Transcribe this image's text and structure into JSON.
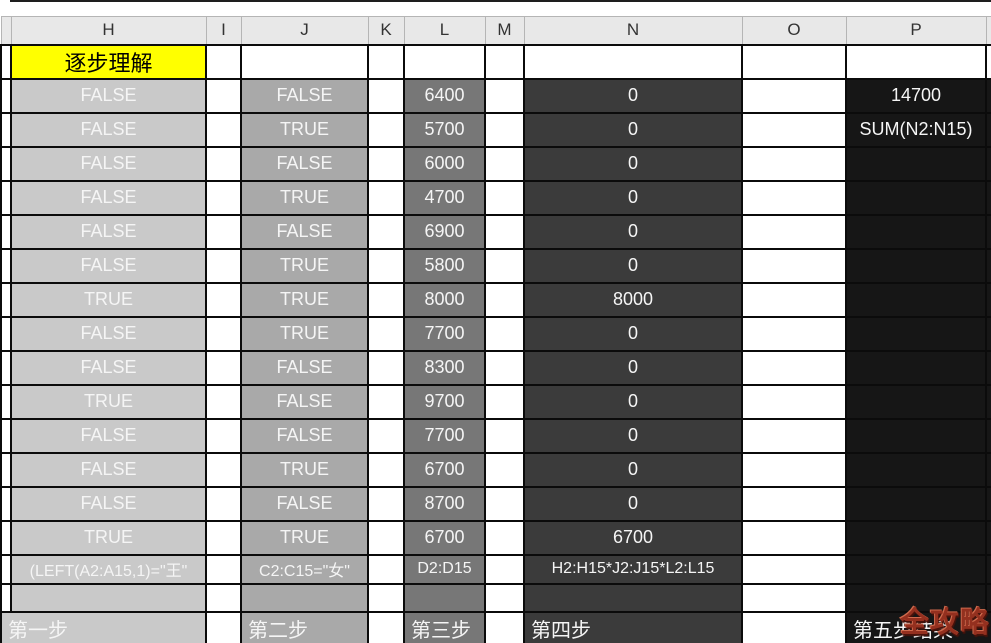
{
  "sheet": {
    "column_headers": [
      "H",
      "I",
      "J",
      "K",
      "L",
      "M",
      "N",
      "O",
      "P"
    ],
    "title_cell": {
      "text": "逐步理解"
    },
    "rows": [
      {
        "h": "FALSE",
        "j": "FALSE",
        "l": "6400",
        "n": "0",
        "p": "14700"
      },
      {
        "h": "FALSE",
        "j": "TRUE",
        "l": "5700",
        "n": "0",
        "p": "SUM(N2:N15)"
      },
      {
        "h": "FALSE",
        "j": "FALSE",
        "l": "6000",
        "n": "0",
        "p": ""
      },
      {
        "h": "FALSE",
        "j": "TRUE",
        "l": "4700",
        "n": "0",
        "p": ""
      },
      {
        "h": "FALSE",
        "j": "FALSE",
        "l": "6900",
        "n": "0",
        "p": ""
      },
      {
        "h": "FALSE",
        "j": "TRUE",
        "l": "5800",
        "n": "0",
        "p": ""
      },
      {
        "h": "TRUE",
        "j": "TRUE",
        "l": "8000",
        "n": "8000",
        "p": ""
      },
      {
        "h": "FALSE",
        "j": "TRUE",
        "l": "7700",
        "n": "0",
        "p": ""
      },
      {
        "h": "FALSE",
        "j": "FALSE",
        "l": "8300",
        "n": "0",
        "p": ""
      },
      {
        "h": "TRUE",
        "j": "FALSE",
        "l": "9700",
        "n": "0",
        "p": ""
      },
      {
        "h": "FALSE",
        "j": "FALSE",
        "l": "7700",
        "n": "0",
        "p": ""
      },
      {
        "h": "FALSE",
        "j": "TRUE",
        "l": "6700",
        "n": "0",
        "p": ""
      },
      {
        "h": "FALSE",
        "j": "FALSE",
        "l": "8700",
        "n": "0",
        "p": ""
      },
      {
        "h": "TRUE",
        "j": "TRUE",
        "l": "6700",
        "n": "6700",
        "p": ""
      }
    ],
    "formula_row": {
      "h": "(LEFT(A2:A15,1)=\"王\"",
      "j": "C2:C15=\"女\"",
      "l": "D2:D15",
      "n": "H2:H15*J2:J15*L2:L15",
      "p": ""
    },
    "step_row": {
      "h": "第一步",
      "j": "第二步",
      "l": "第三步",
      "n": "第四步",
      "p": "第五步结果"
    }
  },
  "watermark": {
    "text": "全攻略"
  },
  "colors": {
    "header_bg": "#e8e8e8",
    "header_text": "#333333",
    "header_grid": "#b5b5b5",
    "grid": "#0b0b0b",
    "col_h_bg": "#c9c9c9",
    "col_j_bg": "#a9a9a9",
    "col_l_bg": "#777777",
    "col_n_bg": "#3b3b3b",
    "col_p_bg": "#161616",
    "title_bg": "#ffff00",
    "cell_text": "#f5f5f5",
    "watermark": "#94301f"
  }
}
